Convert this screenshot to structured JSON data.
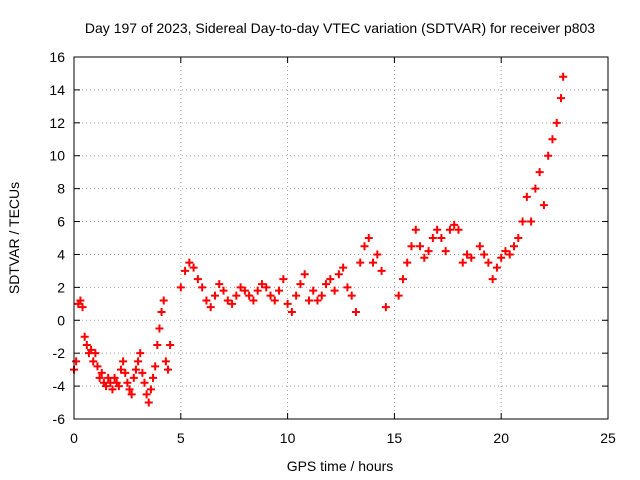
{
  "colors": {
    "series": "#ff0000",
    "grid": "#a0a0a0",
    "axis": "#000000",
    "background": "#ffffff"
  },
  "chart_data": {
    "type": "scatter",
    "title": "Day 197 of 2023, Sidereal Day-to-day VTEC variation (SDTVAR) for receiver p803",
    "xlabel": "GPS time / hours",
    "ylabel": "SDTVAR / TECUs",
    "xlim": [
      0,
      25
    ],
    "ylim": [
      -6,
      16
    ],
    "xticks": [
      0,
      5,
      10,
      15,
      20,
      25
    ],
    "yticks": [
      -6,
      -4,
      -2,
      0,
      2,
      4,
      6,
      8,
      10,
      12,
      14,
      16
    ],
    "grid": true,
    "marker": "+",
    "series": [
      {
        "name": "SDTVAR",
        "color": "#ff0000",
        "x": [
          0.0,
          0.1,
          0.2,
          0.3,
          0.4,
          0.5,
          0.6,
          0.7,
          0.8,
          0.9,
          1.0,
          1.1,
          1.2,
          1.3,
          1.4,
          1.5,
          1.6,
          1.7,
          1.8,
          1.9,
          2.0,
          2.1,
          2.2,
          2.3,
          2.4,
          2.5,
          2.6,
          2.7,
          2.8,
          2.9,
          3.0,
          3.1,
          3.2,
          3.3,
          3.4,
          3.5,
          3.6,
          3.7,
          3.8,
          3.9,
          4.0,
          4.1,
          4.2,
          4.3,
          4.4,
          4.5,
          5.0,
          5.2,
          5.4,
          5.6,
          5.8,
          6.0,
          6.2,
          6.4,
          6.6,
          6.8,
          7.0,
          7.2,
          7.4,
          7.6,
          7.8,
          8.0,
          8.2,
          8.4,
          8.6,
          8.8,
          9.0,
          9.2,
          9.4,
          9.6,
          9.8,
          10.0,
          10.2,
          10.4,
          10.6,
          10.8,
          11.0,
          11.2,
          11.4,
          11.6,
          11.8,
          12.0,
          12.2,
          12.4,
          12.6,
          12.8,
          13.0,
          13.2,
          13.4,
          13.6,
          13.8,
          14.0,
          14.2,
          14.4,
          14.6,
          15.2,
          15.4,
          15.6,
          15.8,
          16.0,
          16.2,
          16.4,
          16.6,
          16.8,
          17.0,
          17.2,
          17.4,
          17.6,
          17.8,
          18.0,
          18.2,
          18.4,
          18.6,
          19.0,
          19.2,
          19.4,
          19.6,
          19.8,
          20.0,
          20.2,
          20.4,
          20.6,
          20.8,
          21.0,
          21.2,
          21.4,
          21.6,
          21.8,
          22.0,
          22.2,
          22.4,
          22.6,
          22.8,
          22.9
        ],
        "y": [
          -3.0,
          -2.5,
          1.0,
          1.2,
          0.8,
          -1.0,
          -1.5,
          -2.0,
          -1.8,
          -2.5,
          -2.0,
          -2.8,
          -3.5,
          -3.2,
          -3.8,
          -4.0,
          -3.5,
          -3.8,
          -4.2,
          -3.5,
          -3.8,
          -4.0,
          -3.0,
          -2.5,
          -3.2,
          -3.8,
          -4.2,
          -4.5,
          -3.5,
          -3.0,
          -2.5,
          -2.0,
          -3.2,
          -3.8,
          -4.5,
          -5.0,
          -4.2,
          -3.5,
          -2.8,
          -1.5,
          -0.5,
          0.5,
          1.2,
          -2.5,
          -3.0,
          -1.5,
          2.0,
          3.0,
          3.5,
          3.2,
          2.5,
          2.0,
          1.2,
          0.8,
          1.5,
          2.2,
          1.8,
          1.2,
          1.0,
          1.5,
          2.0,
          1.8,
          1.5,
          1.2,
          1.8,
          2.2,
          2.0,
          1.5,
          1.2,
          1.8,
          2.5,
          1.0,
          0.5,
          1.5,
          2.2,
          2.8,
          1.2,
          1.8,
          1.2,
          1.5,
          2.2,
          2.5,
          1.8,
          2.8,
          3.2,
          2.0,
          1.5,
          0.5,
          3.5,
          4.5,
          5.0,
          3.5,
          4.0,
          3.0,
          0.8,
          1.5,
          2.5,
          3.5,
          4.5,
          5.5,
          4.5,
          3.8,
          4.2,
          5.0,
          5.5,
          5.0,
          4.2,
          5.5,
          5.8,
          5.5,
          3.5,
          4.0,
          3.8,
          4.5,
          4.0,
          3.5,
          2.5,
          3.2,
          3.8,
          4.2,
          4.0,
          4.5,
          5.0,
          6.0,
          7.5,
          6.0,
          8.0,
          9.0,
          7.0,
          10.0,
          11.0,
          12.0,
          13.5,
          14.8
        ]
      }
    ]
  }
}
